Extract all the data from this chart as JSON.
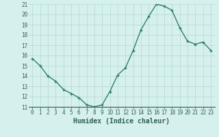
{
  "x": [
    0,
    1,
    2,
    3,
    4,
    5,
    6,
    7,
    8,
    9,
    10,
    11,
    12,
    13,
    14,
    15,
    16,
    17,
    18,
    19,
    20,
    21,
    22,
    23
  ],
  "y": [
    15.7,
    15.0,
    14.0,
    13.5,
    12.7,
    12.3,
    11.9,
    11.2,
    11.0,
    11.2,
    12.5,
    14.1,
    14.8,
    16.5,
    18.5,
    19.8,
    21.0,
    20.8,
    20.4,
    18.7,
    17.4,
    17.1,
    17.3,
    16.5
  ],
  "xlabel": "Humidex (Indice chaleur)",
  "ylim": [
    11,
    21
  ],
  "xlim": [
    -0.5,
    23.5
  ],
  "yticks": [
    11,
    12,
    13,
    14,
    15,
    16,
    17,
    18,
    19,
    20,
    21
  ],
  "xticks": [
    0,
    1,
    2,
    3,
    4,
    5,
    6,
    7,
    8,
    9,
    10,
    11,
    12,
    13,
    14,
    15,
    16,
    17,
    18,
    19,
    20,
    21,
    22,
    23
  ],
  "line_color": "#2e7d6e",
  "marker_color": "#2e7d6e",
  "bg_color": "#d6f0ee",
  "grid_color": "#b0d8d4",
  "label_color": "#2e5f58",
  "tick_fontsize": 5.5,
  "xlabel_fontsize": 7.0
}
